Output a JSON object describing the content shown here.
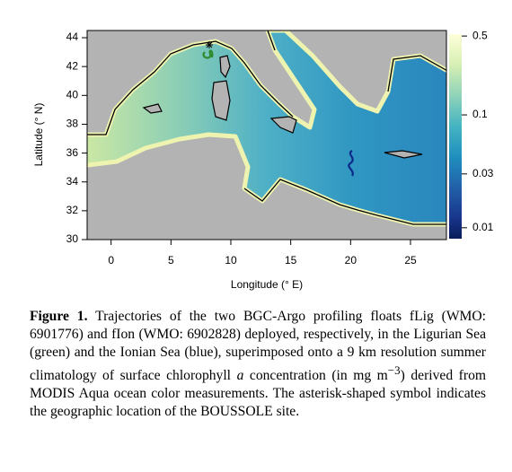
{
  "chart_data": {
    "type": "map",
    "xlabel": "Longitude (° E)",
    "ylabel": "Latitude (° N)",
    "xlim": [
      -2,
      28
    ],
    "ylim": [
      30,
      44.5
    ],
    "xticks": [
      0,
      5,
      10,
      15,
      20,
      25
    ],
    "yticks": [
      30,
      32,
      34,
      36,
      38,
      40,
      42,
      44
    ],
    "colorbar": {
      "log": true,
      "lim": [
        0.008,
        0.52
      ],
      "ticks": [
        0.5,
        0.1,
        0.03,
        0.01
      ]
    }
  },
  "caption": {
    "label": "Figure 1.",
    "text1": "Trajectories of the two BGC-Argo profiling floats fLig (WMO: 6901776) and fIon (WMO: 6902828) deployed, respectively, in the Ligurian Sea (green) and the Ionian Sea (blue), superimposed onto a 9 km resolution summer climatology of surface chlorophyll",
    "italic": "a",
    "text2": "concentration (in mg m",
    "sup": "−3",
    "text3": ") derived from MODIS Aqua ocean color measurements. The asterisk-shaped symbol indicates the geographic location of the BOUSSOLE site."
  }
}
